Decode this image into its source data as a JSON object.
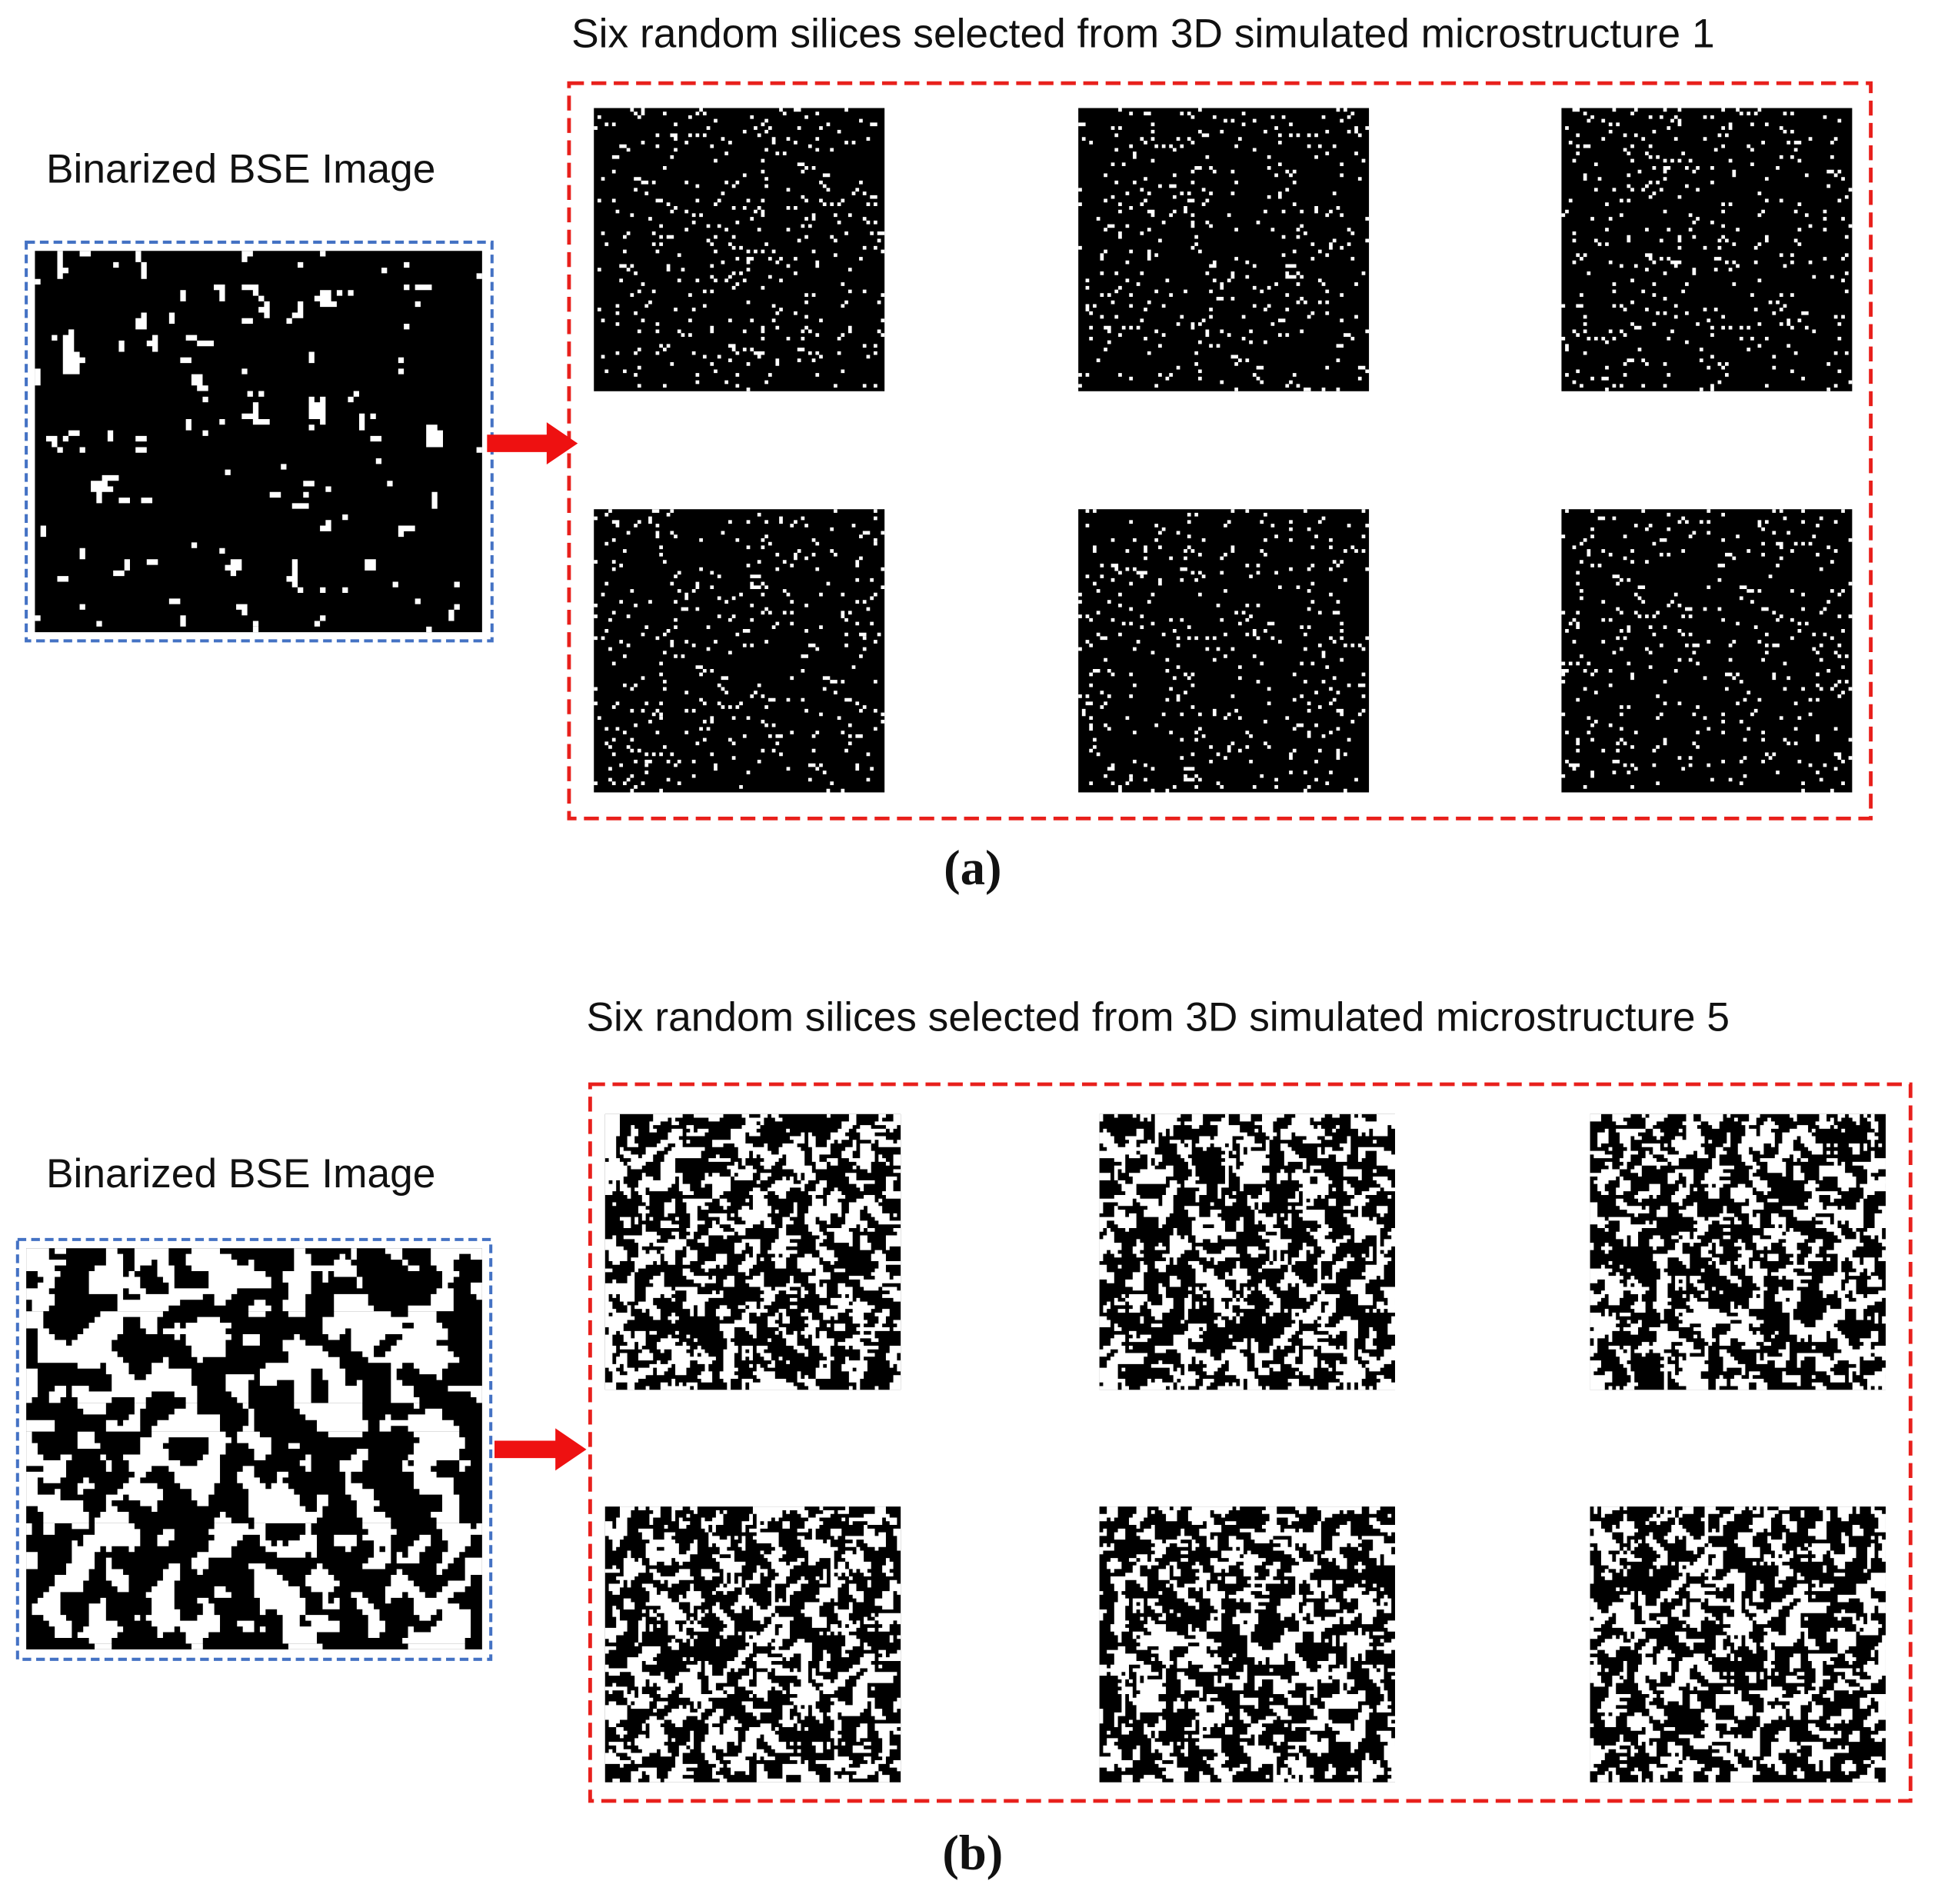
{
  "panels": [
    {
      "input_label": "Binarized BSE Image",
      "slices_title": "Six random silices selected from 3D simulated microstructure 1",
      "label": "(a)"
    },
    {
      "input_label": "Binarized BSE Image",
      "slices_title": "Six random silices selected from 3D simulated microstructure 5",
      "label": "(b)"
    }
  ]
}
